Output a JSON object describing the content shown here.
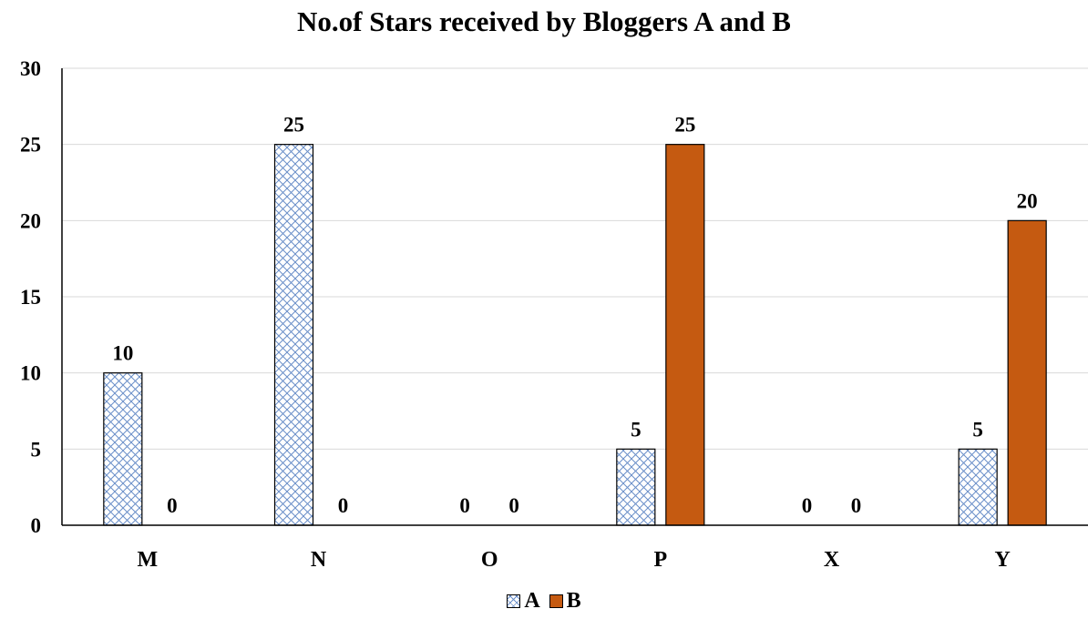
{
  "chart_data": {
    "type": "bar",
    "title": "No.of Stars received by Bloggers A and B",
    "categories": [
      "M",
      "N",
      "O",
      "P",
      "X",
      "Y"
    ],
    "series": [
      {
        "name": "A",
        "values": [
          10,
          25,
          0,
          5,
          0,
          5
        ],
        "color": "#4472c4",
        "pattern": "diagonal-crosshatch"
      },
      {
        "name": "B",
        "values": [
          0,
          0,
          0,
          25,
          0,
          20
        ],
        "color": "#c55a11",
        "pattern": "solid"
      }
    ],
    "data_labels": [
      [
        "10",
        "25",
        "0",
        "5",
        "0",
        "5"
      ],
      [
        "0",
        "0",
        "0",
        "25",
        "0",
        "20"
      ]
    ],
    "xlabel": "",
    "ylabel": "",
    "ylim": [
      0,
      30
    ],
    "yticks": [
      "0",
      "5",
      "10",
      "15",
      "20",
      "25",
      "30"
    ],
    "grid": "horizontal",
    "legend_position": "bottom"
  }
}
